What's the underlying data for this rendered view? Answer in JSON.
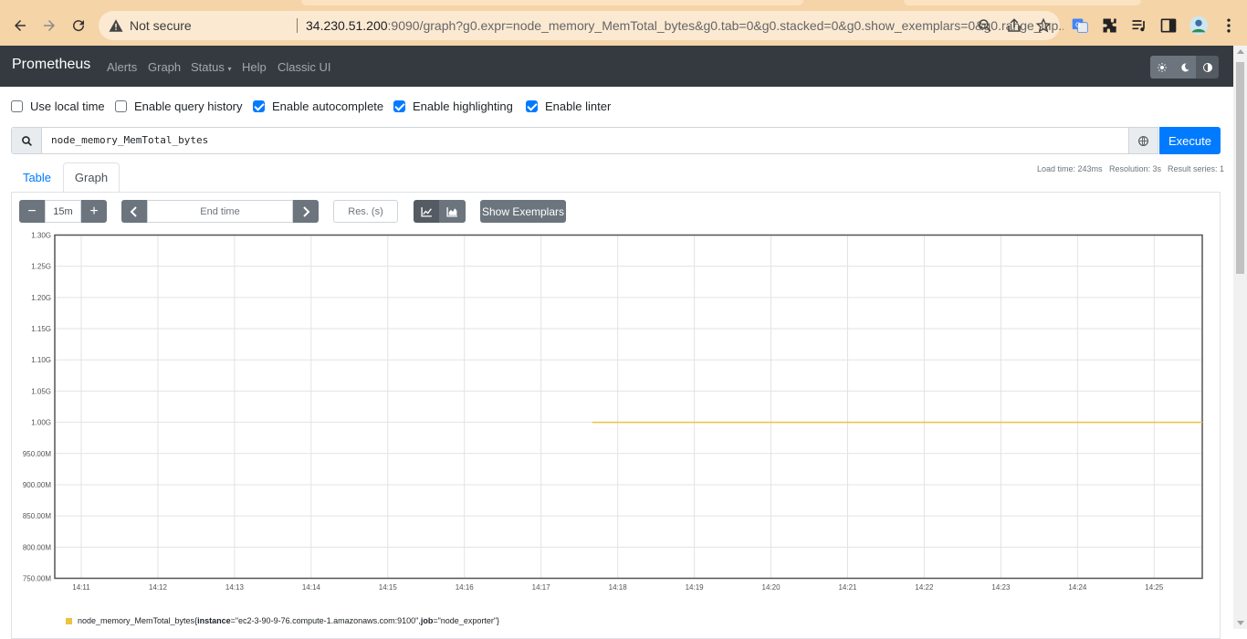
{
  "browser": {
    "security_label": "Not secure",
    "url_host": "34.230.51.200",
    "url_rest": ":9090/graph?g0.expr=node_memory_MemTotal_bytes&g0.tab=0&g0.stacked=0&g0.show_exemplars=0&g0.range_inp..."
  },
  "nav": {
    "brand": "Prometheus",
    "links": [
      "Alerts",
      "Graph",
      "Status",
      "Help",
      "Classic UI"
    ]
  },
  "options": {
    "use_local_time": {
      "label": "Use local time",
      "checked": false
    },
    "query_history": {
      "label": "Enable query history",
      "checked": false
    },
    "autocomplete": {
      "label": "Enable autocomplete",
      "checked": true
    },
    "highlighting": {
      "label": "Enable highlighting",
      "checked": true
    },
    "linter": {
      "label": "Enable linter",
      "checked": true
    }
  },
  "query": {
    "expression": "node_memory_MemTotal_bytes",
    "execute_label": "Execute"
  },
  "tabs": {
    "table": "Table",
    "graph": "Graph"
  },
  "stats": {
    "load_time": "Load time: 243ms",
    "resolution": "Resolution: 3s",
    "result_series": "Result series: 1"
  },
  "graph_controls": {
    "minus": "−",
    "range": "15m",
    "plus": "+",
    "end_time_placeholder": "End time",
    "resolution_placeholder": "Res. (s)",
    "show_exemplars": "Show Exemplars"
  },
  "chart_data": {
    "type": "line",
    "y_ticks": [
      "1.30G",
      "1.25G",
      "1.20G",
      "1.15G",
      "1.10G",
      "1.05G",
      "1.00G",
      "950.00M",
      "900.00M",
      "850.00M",
      "800.00M",
      "750.00M"
    ],
    "x_ticks": [
      "14:11",
      "14:12",
      "14:13",
      "14:14",
      "14:15",
      "14:16",
      "14:17",
      "14:18",
      "14:19",
      "14:20",
      "14:21",
      "14:22",
      "14:23",
      "14:24",
      "14:25"
    ],
    "ylim": [
      750000000,
      1300000000
    ],
    "series": [
      {
        "name": "node_memory_MemTotal_bytes{instance=\"ec2-3-90-9-76.compute-1.amazonaws.com:9100\", job=\"node_exporter\"}",
        "color": "#edc240",
        "x_start": "14:17:40",
        "x_end": "14:25:40",
        "value": 1000000000
      }
    ],
    "legend": {
      "metric": "node_memory_MemTotal_bytes",
      "open": "{",
      "instance_key": "instance",
      "instance_val": "=\"ec2-3-90-9-76.compute-1.amazonaws.com:9100\", ",
      "job_key": "job",
      "job_val": "=\"node_exporter\"",
      "close": "}"
    }
  }
}
